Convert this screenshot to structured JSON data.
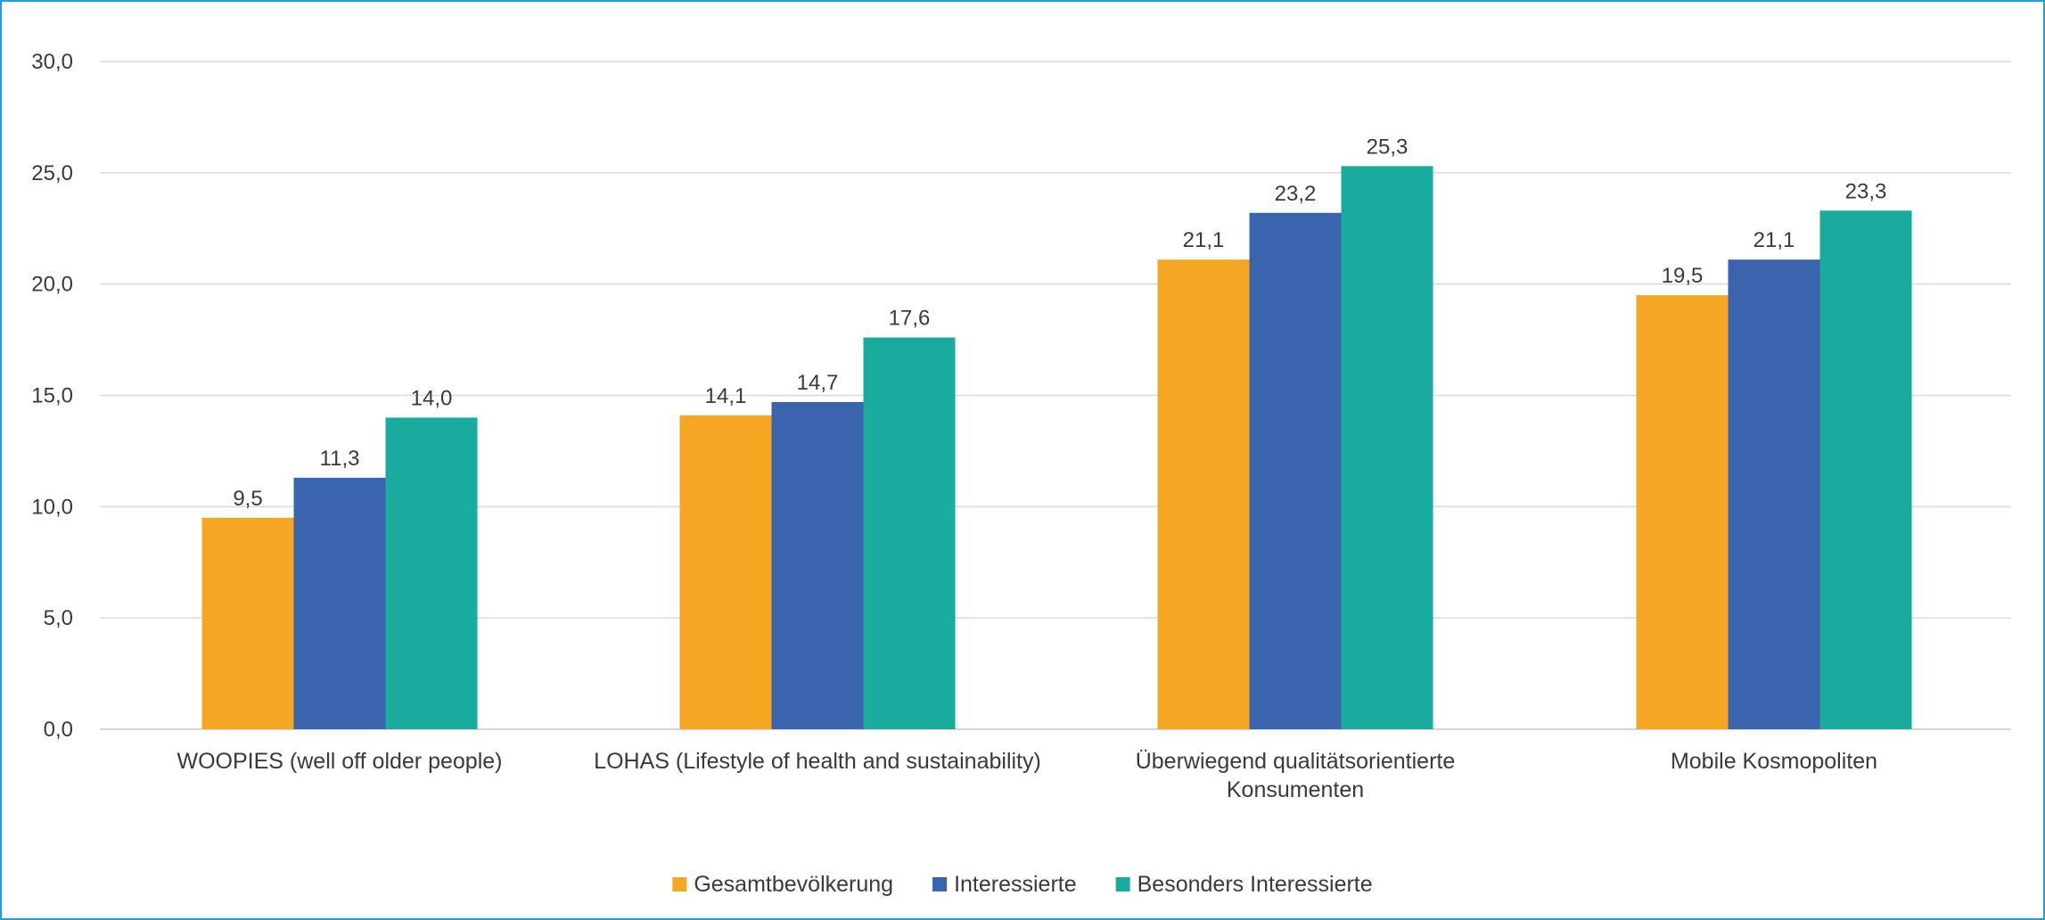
{
  "chart_data": {
    "type": "bar",
    "categories": [
      [
        "WOOPIES (well off older people)"
      ],
      [
        "LOHAS (Lifestyle of health and sustainability)"
      ],
      [
        "Überwiegend qualitätsorientierte",
        "Konsumenten"
      ],
      [
        "Mobile Kosmopoliten"
      ]
    ],
    "series": [
      {
        "name": "Gesamtbevölkerung",
        "color": "#f5a623",
        "values": [
          9.5,
          14.1,
          21.1,
          19.5
        ],
        "labels": [
          "9,5",
          "14,1",
          "21,1",
          "19,5"
        ]
      },
      {
        "name": "Interessierte",
        "color": "#3a64ae",
        "values": [
          11.3,
          14.7,
          23.2,
          21.1
        ],
        "labels": [
          "11,3",
          "14,7",
          "23,2",
          "21,1"
        ]
      },
      {
        "name": "Besonders Interessierte",
        "color": "#1aab9f",
        "values": [
          14.0,
          17.6,
          25.3,
          23.3
        ],
        "labels": [
          "14,0",
          "17,6",
          "25,3",
          "23,3"
        ]
      }
    ],
    "y_ticks": [
      0,
      5,
      10,
      15,
      20,
      25,
      30
    ],
    "y_tick_labels": [
      "0,0",
      "5,0",
      "10,0",
      "15,0",
      "20,0",
      "25,0",
      "30,0"
    ],
    "ylim": [
      0,
      30
    ],
    "grid": true,
    "legend_position": "bottom-center",
    "title": "",
    "xlabel": "",
    "ylabel": ""
  }
}
